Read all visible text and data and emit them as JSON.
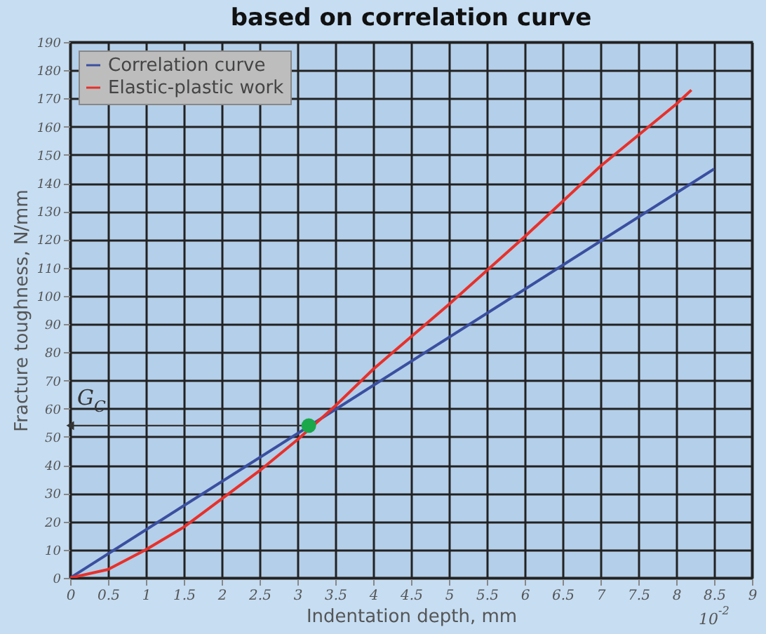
{
  "chart_data": {
    "type": "line",
    "title": "based on correlation curve",
    "xlabel": "Indentation depth, mm",
    "ylabel": "Fracture toughness, N/mm",
    "xlim": [
      0,
      9
    ],
    "xticks": [
      0,
      0.5,
      1,
      1.5,
      2,
      2.5,
      3,
      3.5,
      4,
      4.5,
      5,
      5.5,
      6,
      6.5,
      7,
      7.5,
      8,
      8.5,
      9
    ],
    "ylim": [
      0,
      190
    ],
    "yticks": [
      0,
      10,
      20,
      30,
      40,
      50,
      60,
      70,
      80,
      90,
      100,
      110,
      120,
      130,
      140,
      150,
      160,
      170,
      180,
      190
    ],
    "grid": true,
    "legend": "top left",
    "series": [
      {
        "name": "Correlation curve",
        "color": "#3a4fa0",
        "x": [
          0,
          8.5
        ],
        "values": [
          0,
          145
        ]
      },
      {
        "name": "Elastic-plastic work",
        "color": "#e8302a",
        "x": [
          0,
          0.5,
          1,
          1.5,
          2,
          2.5,
          3,
          3.5,
          4,
          5,
          6,
          7,
          8,
          8.2
        ],
        "values": [
          0,
          3,
          10,
          18,
          28,
          38,
          49,
          61,
          74,
          97,
          121,
          146,
          168,
          173
        ]
      },
      {
        "type": "scatter",
        "color": "#1aa84a",
        "x": [
          3.15
        ],
        "values": [
          54
        ]
      }
    ],
    "annotations": [
      "G$_{C}$",
      "10$^{-2}$"
    ]
  }
}
